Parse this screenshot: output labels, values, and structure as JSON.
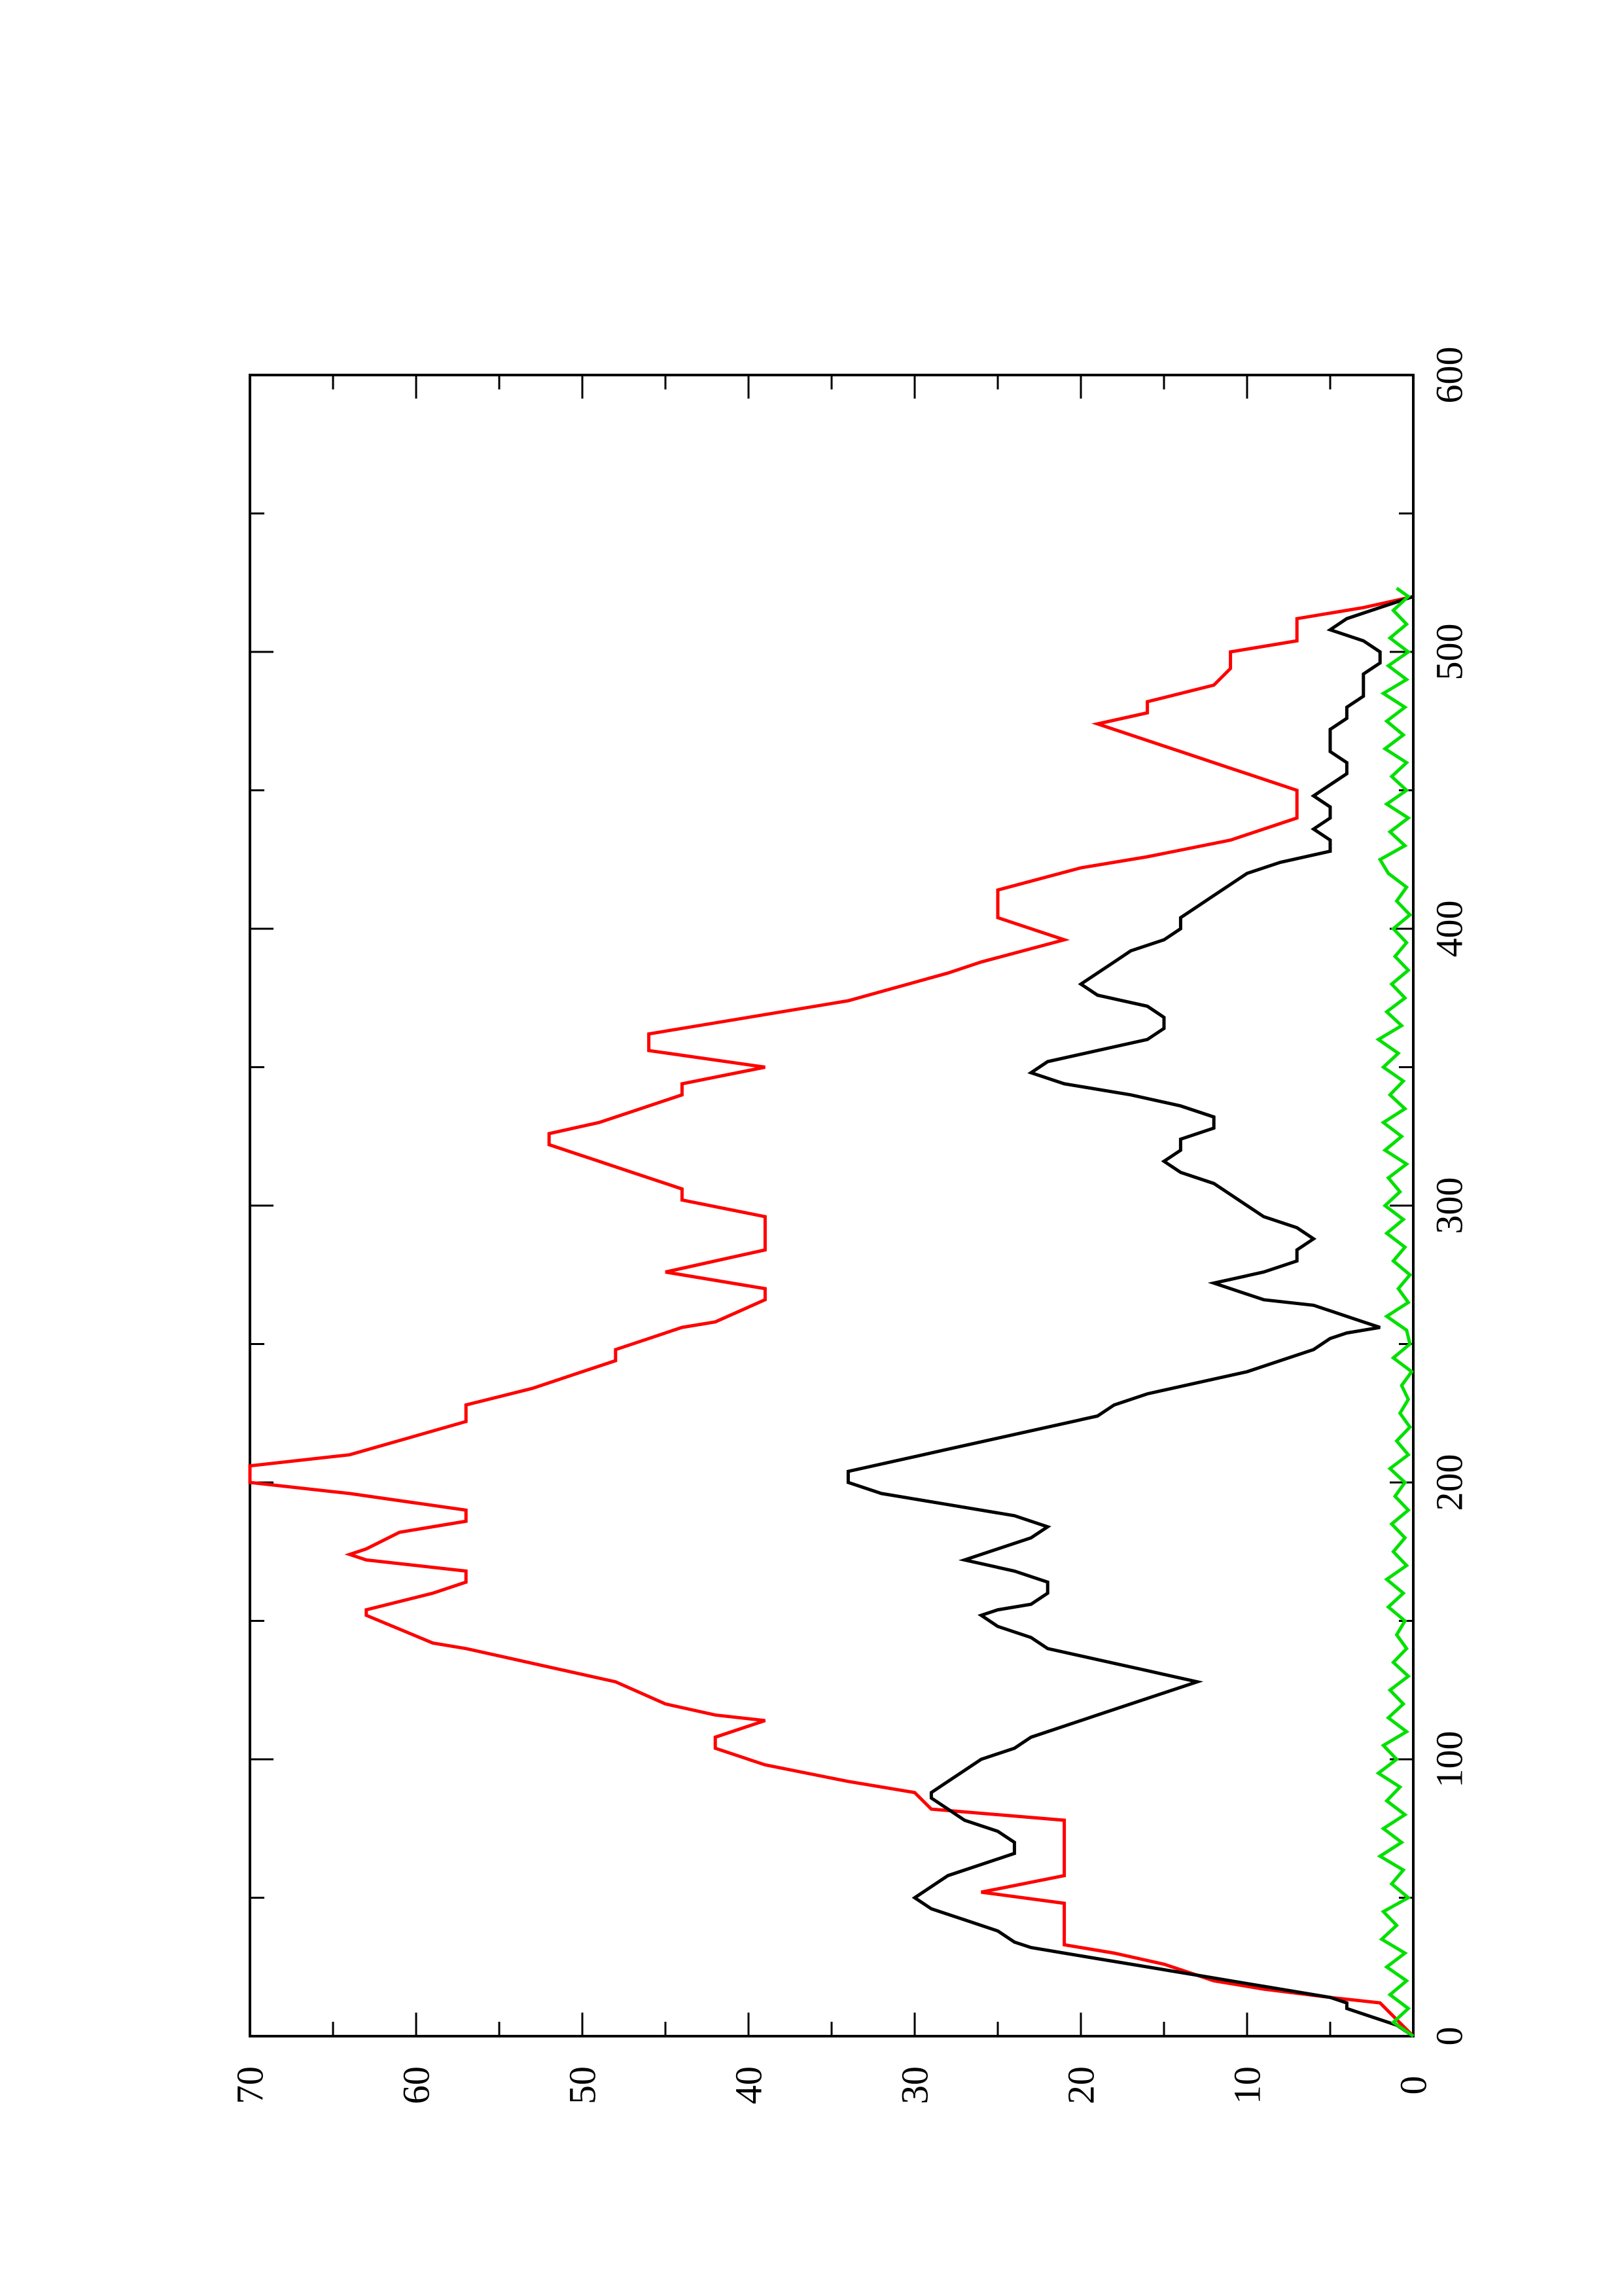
{
  "chart_data": {
    "type": "line",
    "orientation": "rotated-90-ccw",
    "title": "",
    "xlabel": "",
    "ylabel": "",
    "xlim": [
      0,
      600
    ],
    "ylim": [
      0,
      70
    ],
    "x_ticks": [
      "0",
      "100",
      "200",
      "300",
      "400",
      "500",
      "600"
    ],
    "y_ticks": [
      "0",
      "10",
      "20",
      "30",
      "40",
      "50",
      "60",
      "70"
    ],
    "grid": false,
    "legend": "none",
    "series": [
      {
        "color": "#ff0000",
        "points": [
          [
            0,
            0
          ],
          [
            6,
            1
          ],
          [
            12,
            2
          ],
          [
            14,
            5
          ],
          [
            17,
            9
          ],
          [
            20,
            12
          ],
          [
            26,
            15
          ],
          [
            30,
            18
          ],
          [
            33,
            21
          ],
          [
            48,
            21
          ],
          [
            52,
            26
          ],
          [
            58,
            21
          ],
          [
            78,
            21
          ],
          [
            82,
            29
          ],
          [
            88,
            30
          ],
          [
            92,
            34
          ],
          [
            98,
            39
          ],
          [
            104,
            42
          ],
          [
            108,
            42
          ],
          [
            114,
            39
          ],
          [
            116,
            42
          ],
          [
            120,
            45
          ],
          [
            128,
            48
          ],
          [
            140,
            57
          ],
          [
            142,
            59
          ],
          [
            152,
            63
          ],
          [
            154,
            63
          ],
          [
            160,
            59
          ],
          [
            164,
            57
          ],
          [
            168,
            57
          ],
          [
            172,
            63
          ],
          [
            174,
            64
          ],
          [
            176,
            63
          ],
          [
            182,
            61
          ],
          [
            186,
            57
          ],
          [
            190,
            57
          ],
          [
            196,
            64
          ],
          [
            200,
            70
          ],
          [
            206,
            70
          ],
          [
            210,
            64
          ],
          [
            222,
            57
          ],
          [
            228,
            57
          ],
          [
            234,
            53
          ],
          [
            236,
            52
          ],
          [
            244,
            48
          ],
          [
            248,
            48
          ],
          [
            256,
            44
          ],
          [
            258,
            42
          ],
          [
            266,
            39
          ],
          [
            270,
            39
          ],
          [
            276,
            45
          ],
          [
            284,
            39
          ],
          [
            296,
            39
          ],
          [
            302,
            44
          ],
          [
            306,
            44
          ],
          [
            312,
            47
          ],
          [
            316,
            49
          ],
          [
            322,
            52
          ],
          [
            326,
            52
          ],
          [
            330,
            49
          ],
          [
            334,
            47
          ],
          [
            340,
            44
          ],
          [
            344,
            44
          ],
          [
            350,
            39
          ],
          [
            356,
            46
          ],
          [
            362,
            46
          ],
          [
            374,
            34
          ],
          [
            384,
            28
          ],
          [
            388,
            26
          ],
          [
            396,
            21
          ],
          [
            404,
            25
          ],
          [
            410,
            25
          ],
          [
            414,
            25
          ],
          [
            422,
            20
          ],
          [
            426,
            16
          ],
          [
            432,
            11
          ],
          [
            440,
            7
          ],
          [
            450,
            7
          ],
          [
            456,
            10
          ],
          [
            458,
            11
          ],
          [
            464,
            14
          ],
          [
            468,
            16
          ],
          [
            474,
            19
          ],
          [
            478,
            16
          ],
          [
            482,
            16
          ],
          [
            488,
            12
          ],
          [
            494,
            11
          ],
          [
            500,
            11
          ],
          [
            504,
            7
          ],
          [
            512,
            7
          ],
          [
            516,
            3
          ],
          [
            520,
            0
          ]
        ]
      },
      {
        "color": "#000000",
        "points": [
          [
            0,
            0
          ],
          [
            4,
            1
          ],
          [
            8,
            3
          ],
          [
            10,
            4
          ],
          [
            12,
            4
          ],
          [
            14,
            5
          ],
          [
            18,
            9
          ],
          [
            22,
            13
          ],
          [
            26,
            17
          ],
          [
            28,
            19
          ],
          [
            30,
            21
          ],
          [
            32,
            23
          ],
          [
            34,
            24
          ],
          [
            38,
            25
          ],
          [
            42,
            27
          ],
          [
            46,
            29
          ],
          [
            50,
            30
          ],
          [
            54,
            29
          ],
          [
            58,
            28
          ],
          [
            62,
            26
          ],
          [
            66,
            24
          ],
          [
            70,
            24
          ],
          [
            74,
            25
          ],
          [
            78,
            27
          ],
          [
            82,
            28
          ],
          [
            86,
            29
          ],
          [
            88,
            29
          ],
          [
            92,
            28
          ],
          [
            96,
            27
          ],
          [
            100,
            26
          ],
          [
            104,
            24
          ],
          [
            108,
            23
          ],
          [
            112,
            21
          ],
          [
            116,
            19
          ],
          [
            120,
            17
          ],
          [
            124,
            15
          ],
          [
            128,
            13
          ],
          [
            132,
            16
          ],
          [
            136,
            19
          ],
          [
            140,
            22
          ],
          [
            144,
            23
          ],
          [
            148,
            25
          ],
          [
            152,
            26
          ],
          [
            154,
            25
          ],
          [
            156,
            23
          ],
          [
            160,
            22
          ],
          [
            164,
            22
          ],
          [
            168,
            24
          ],
          [
            172,
            27
          ],
          [
            176,
            25
          ],
          [
            180,
            23
          ],
          [
            184,
            22
          ],
          [
            188,
            24
          ],
          [
            192,
            28
          ],
          [
            196,
            32
          ],
          [
            200,
            34
          ],
          [
            204,
            34
          ],
          [
            208,
            31
          ],
          [
            212,
            28
          ],
          [
            216,
            25
          ],
          [
            220,
            22
          ],
          [
            224,
            19
          ],
          [
            228,
            18
          ],
          [
            232,
            16
          ],
          [
            236,
            13
          ],
          [
            240,
            10
          ],
          [
            244,
            8
          ],
          [
            248,
            6
          ],
          [
            252,
            5
          ],
          [
            254,
            4
          ],
          [
            256,
            2
          ],
          [
            258,
            3
          ],
          [
            260,
            4
          ],
          [
            264,
            6
          ],
          [
            266,
            9
          ],
          [
            270,
            11
          ],
          [
            272,
            12
          ],
          [
            276,
            9
          ],
          [
            280,
            7
          ],
          [
            284,
            7
          ],
          [
            288,
            6
          ],
          [
            292,
            7
          ],
          [
            296,
            9
          ],
          [
            300,
            10
          ],
          [
            304,
            11
          ],
          [
            308,
            12
          ],
          [
            312,
            14
          ],
          [
            316,
            15
          ],
          [
            320,
            14
          ],
          [
            324,
            14
          ],
          [
            328,
            12
          ],
          [
            332,
            12
          ],
          [
            336,
            14
          ],
          [
            340,
            17
          ],
          [
            344,
            21
          ],
          [
            348,
            23
          ],
          [
            352,
            22
          ],
          [
            356,
            19
          ],
          [
            360,
            16
          ],
          [
            364,
            15
          ],
          [
            368,
            15
          ],
          [
            372,
            16
          ],
          [
            376,
            19
          ],
          [
            380,
            20
          ],
          [
            384,
            19
          ],
          [
            388,
            18
          ],
          [
            392,
            17
          ],
          [
            396,
            15
          ],
          [
            400,
            14
          ],
          [
            404,
            14
          ],
          [
            408,
            13
          ],
          [
            412,
            12
          ],
          [
            416,
            11
          ],
          [
            420,
            10
          ],
          [
            424,
            8
          ],
          [
            428,
            5
          ],
          [
            432,
            5
          ],
          [
            436,
            6
          ],
          [
            440,
            5
          ],
          [
            444,
            5
          ],
          [
            448,
            6
          ],
          [
            452,
            5
          ],
          [
            456,
            4
          ],
          [
            460,
            4
          ],
          [
            464,
            5
          ],
          [
            468,
            5
          ],
          [
            472,
            5
          ],
          [
            476,
            4
          ],
          [
            480,
            4
          ],
          [
            484,
            3
          ],
          [
            488,
            3
          ],
          [
            492,
            3
          ],
          [
            496,
            2
          ],
          [
            500,
            2
          ],
          [
            504,
            3
          ],
          [
            508,
            5
          ],
          [
            512,
            4
          ],
          [
            516,
            2
          ],
          [
            520,
            0
          ]
        ]
      },
      {
        "color": "#00e000",
        "points": [
          [
            0,
            0
          ],
          [
            5,
            1.2
          ],
          [
            10,
            0.3
          ],
          [
            15,
            1.4
          ],
          [
            20,
            0.4
          ],
          [
            25,
            1.6
          ],
          [
            30,
            0.5
          ],
          [
            35,
            1.9
          ],
          [
            40,
            1.0
          ],
          [
            45,
            1.8
          ],
          [
            50,
            0.3
          ],
          [
            55,
            1.3
          ],
          [
            60,
            0.6
          ],
          [
            65,
            2.0
          ],
          [
            70,
            0.7
          ],
          [
            75,
            1.8
          ],
          [
            80,
            0.5
          ],
          [
            85,
            1.6
          ],
          [
            90,
            0.8
          ],
          [
            95,
            2.1
          ],
          [
            100,
            1.0
          ],
          [
            105,
            1.8
          ],
          [
            110,
            0.4
          ],
          [
            115,
            1.5
          ],
          [
            120,
            0.6
          ],
          [
            125,
            1.4
          ],
          [
            130,
            0.3
          ],
          [
            135,
            1.2
          ],
          [
            140,
            0.4
          ],
          [
            145,
            1.0
          ],
          [
            150,
            0.5
          ],
          [
            155,
            1.5
          ],
          [
            160,
            0.6
          ],
          [
            165,
            1.6
          ],
          [
            170,
            0.4
          ],
          [
            175,
            1.2
          ],
          [
            180,
            0.5
          ],
          [
            185,
            1.3
          ],
          [
            190,
            0.3
          ],
          [
            195,
            1.1
          ],
          [
            200,
            0.5
          ],
          [
            205,
            1.4
          ],
          [
            210,
            0.3
          ],
          [
            215,
            1.0
          ],
          [
            220,
            0.2
          ],
          [
            225,
            0.8
          ],
          [
            230,
            0.3
          ],
          [
            235,
            0.7
          ],
          [
            240,
            0.1
          ],
          [
            245,
            1.2
          ],
          [
            250,
            0.2
          ],
          [
            255,
            0.4
          ],
          [
            260,
            1.6
          ],
          [
            265,
            0.3
          ],
          [
            270,
            0.9
          ],
          [
            275,
            0.2
          ],
          [
            280,
            1.2
          ],
          [
            285,
            0.5
          ],
          [
            290,
            1.6
          ],
          [
            295,
            0.6
          ],
          [
            300,
            1.7
          ],
          [
            305,
            0.8
          ],
          [
            310,
            1.5
          ],
          [
            315,
            0.4
          ],
          [
            320,
            1.7
          ],
          [
            325,
            0.7
          ],
          [
            330,
            1.8
          ],
          [
            335,
            0.5
          ],
          [
            340,
            1.4
          ],
          [
            345,
            0.6
          ],
          [
            350,
            1.8
          ],
          [
            355,
            0.9
          ],
          [
            360,
            2.1
          ],
          [
            365,
            0.7
          ],
          [
            370,
            1.6
          ],
          [
            375,
            0.5
          ],
          [
            380,
            1.3
          ],
          [
            385,
            0.3
          ],
          [
            390,
            1.1
          ],
          [
            395,
            0.4
          ],
          [
            400,
            1.2
          ],
          [
            405,
            0.2
          ],
          [
            410,
            1.0
          ],
          [
            415,
            0.4
          ],
          [
            420,
            1.5
          ],
          [
            425,
            2.0
          ],
          [
            430,
            0.5
          ],
          [
            435,
            1.4
          ],
          [
            440,
            0.3
          ],
          [
            445,
            1.6
          ],
          [
            450,
            0.4
          ],
          [
            455,
            1.3
          ],
          [
            460,
            0.4
          ],
          [
            465,
            1.7
          ],
          [
            470,
            0.6
          ],
          [
            475,
            1.6
          ],
          [
            480,
            0.5
          ],
          [
            485,
            1.8
          ],
          [
            490,
            0.4
          ],
          [
            495,
            1.5
          ],
          [
            500,
            0.3
          ],
          [
            505,
            1.4
          ],
          [
            510,
            0.4
          ],
          [
            515,
            1.2
          ],
          [
            520,
            0.3
          ],
          [
            523,
            1.0
          ]
        ]
      }
    ]
  }
}
